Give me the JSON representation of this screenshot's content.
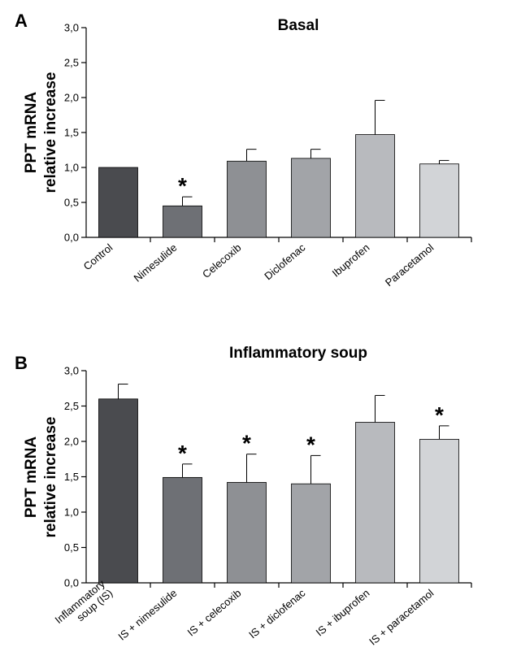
{
  "chart_data": [
    {
      "type": "bar",
      "panel": "A",
      "title": "Basal",
      "ylabel_lines": [
        "PPT mRNA",
        "relative increase"
      ],
      "ylim": [
        0,
        3.0
      ],
      "yticks": [
        "0,0",
        "0,5",
        "1,0",
        "1,5",
        "2,0",
        "2,5",
        "3,0"
      ],
      "ytick_values": [
        0,
        0.5,
        1.0,
        1.5,
        2.0,
        2.5,
        3.0
      ],
      "categories": [
        [
          "Control"
        ],
        [
          "Nimesulide"
        ],
        [
          "Celecoxib"
        ],
        [
          "Diclofenac"
        ],
        [
          "Ibuprofen"
        ],
        [
          "Paracetamol"
        ]
      ],
      "values": [
        1.0,
        0.45,
        1.09,
        1.13,
        1.47,
        1.05
      ],
      "errors": [
        0,
        0.13,
        0.17,
        0.13,
        0.49,
        0.05
      ],
      "significant": [
        false,
        true,
        false,
        false,
        false,
        false
      ],
      "colors": [
        "#4a4b4f",
        "#6e7075",
        "#8e9094",
        "#a2a4a8",
        "#b8babe",
        "#d2d4d7"
      ]
    },
    {
      "type": "bar",
      "panel": "B",
      "title": "Inflammatory soup",
      "ylabel_lines": [
        "PPT mRNA",
        "relative increase"
      ],
      "ylim": [
        0,
        3.0
      ],
      "yticks": [
        "0,0",
        "0,5",
        "1,0",
        "1,5",
        "2,0",
        "2,5",
        "3,0"
      ],
      "ytick_values": [
        0,
        0.5,
        1.0,
        1.5,
        2.0,
        2.5,
        3.0
      ],
      "categories": [
        [
          "Inflammatory",
          "soup (IS)"
        ],
        [
          "IS + nimesulide"
        ],
        [
          "IS + celecoxib"
        ],
        [
          "IS + diclofenac"
        ],
        [
          "IS + ibuprofen"
        ],
        [
          "IS + paracetamol"
        ]
      ],
      "values": [
        2.6,
        1.49,
        1.42,
        1.4,
        2.27,
        2.03
      ],
      "errors": [
        0.21,
        0.19,
        0.4,
        0.4,
        0.38,
        0.19
      ],
      "significant": [
        false,
        true,
        true,
        true,
        false,
        true
      ],
      "colors": [
        "#4a4b4f",
        "#6e7075",
        "#8e9094",
        "#a2a4a8",
        "#b8babe",
        "#d2d4d7"
      ]
    }
  ],
  "significance_marker": "*"
}
